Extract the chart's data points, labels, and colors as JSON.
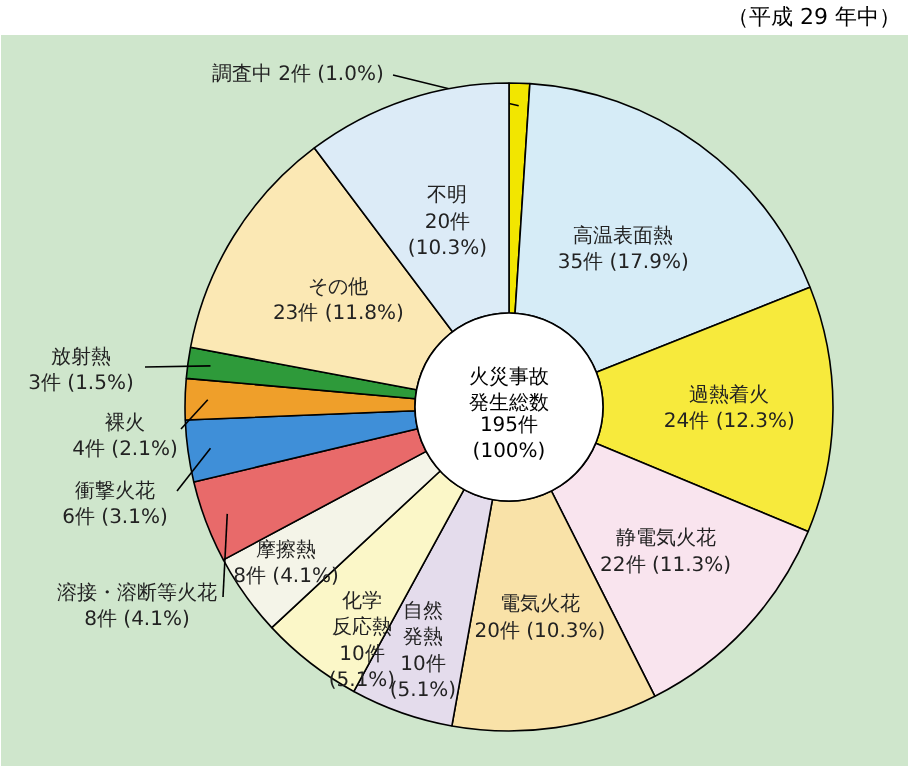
{
  "chart_data": {
    "type": "donut",
    "categories": [
      "調査中",
      "高温表面熱",
      "過熱着火",
      "静電気火花",
      "電気火花",
      "自然発熱",
      "化学反応熱",
      "摩擦熱",
      "溶接・溶断等火花",
      "衝撃火花",
      "裸火",
      "放射熱",
      "その他",
      "不明"
    ],
    "values": [
      2,
      35,
      24,
      22,
      20,
      10,
      10,
      8,
      8,
      6,
      4,
      3,
      23,
      20
    ],
    "value_labels": [
      "2件 (1.0%)",
      "35件 (17.9%)",
      "24件 (12.3%)",
      "22件 (11.3%)",
      "20件 (10.3%)",
      "10件\n(5.1%)",
      "10件\n(5.1%)",
      "8件 (4.1%)",
      "8件 (4.1%)",
      "6件 (3.1%)",
      "4件 (2.1%)",
      "3件 (1.5%)",
      "23件 (11.8%)",
      "20件\n(10.3%)"
    ],
    "colors": [
      "#f2e600",
      "#d6ecf7",
      "#f7ea3c",
      "#f9e4ee",
      "#f9e2a8",
      "#e4dcec",
      "#fbf7c8",
      "#f4f4e8",
      "#e86a6a",
      "#3f8fd8",
      "#ef9f2a",
      "#2e9a3a",
      "#fbe8b4",
      "#dcebf7"
    ],
    "annotations": [
      "（平成 29 年中）",
      "火災事故発生総数",
      "195件\n(100%)"
    ]
  }
}
